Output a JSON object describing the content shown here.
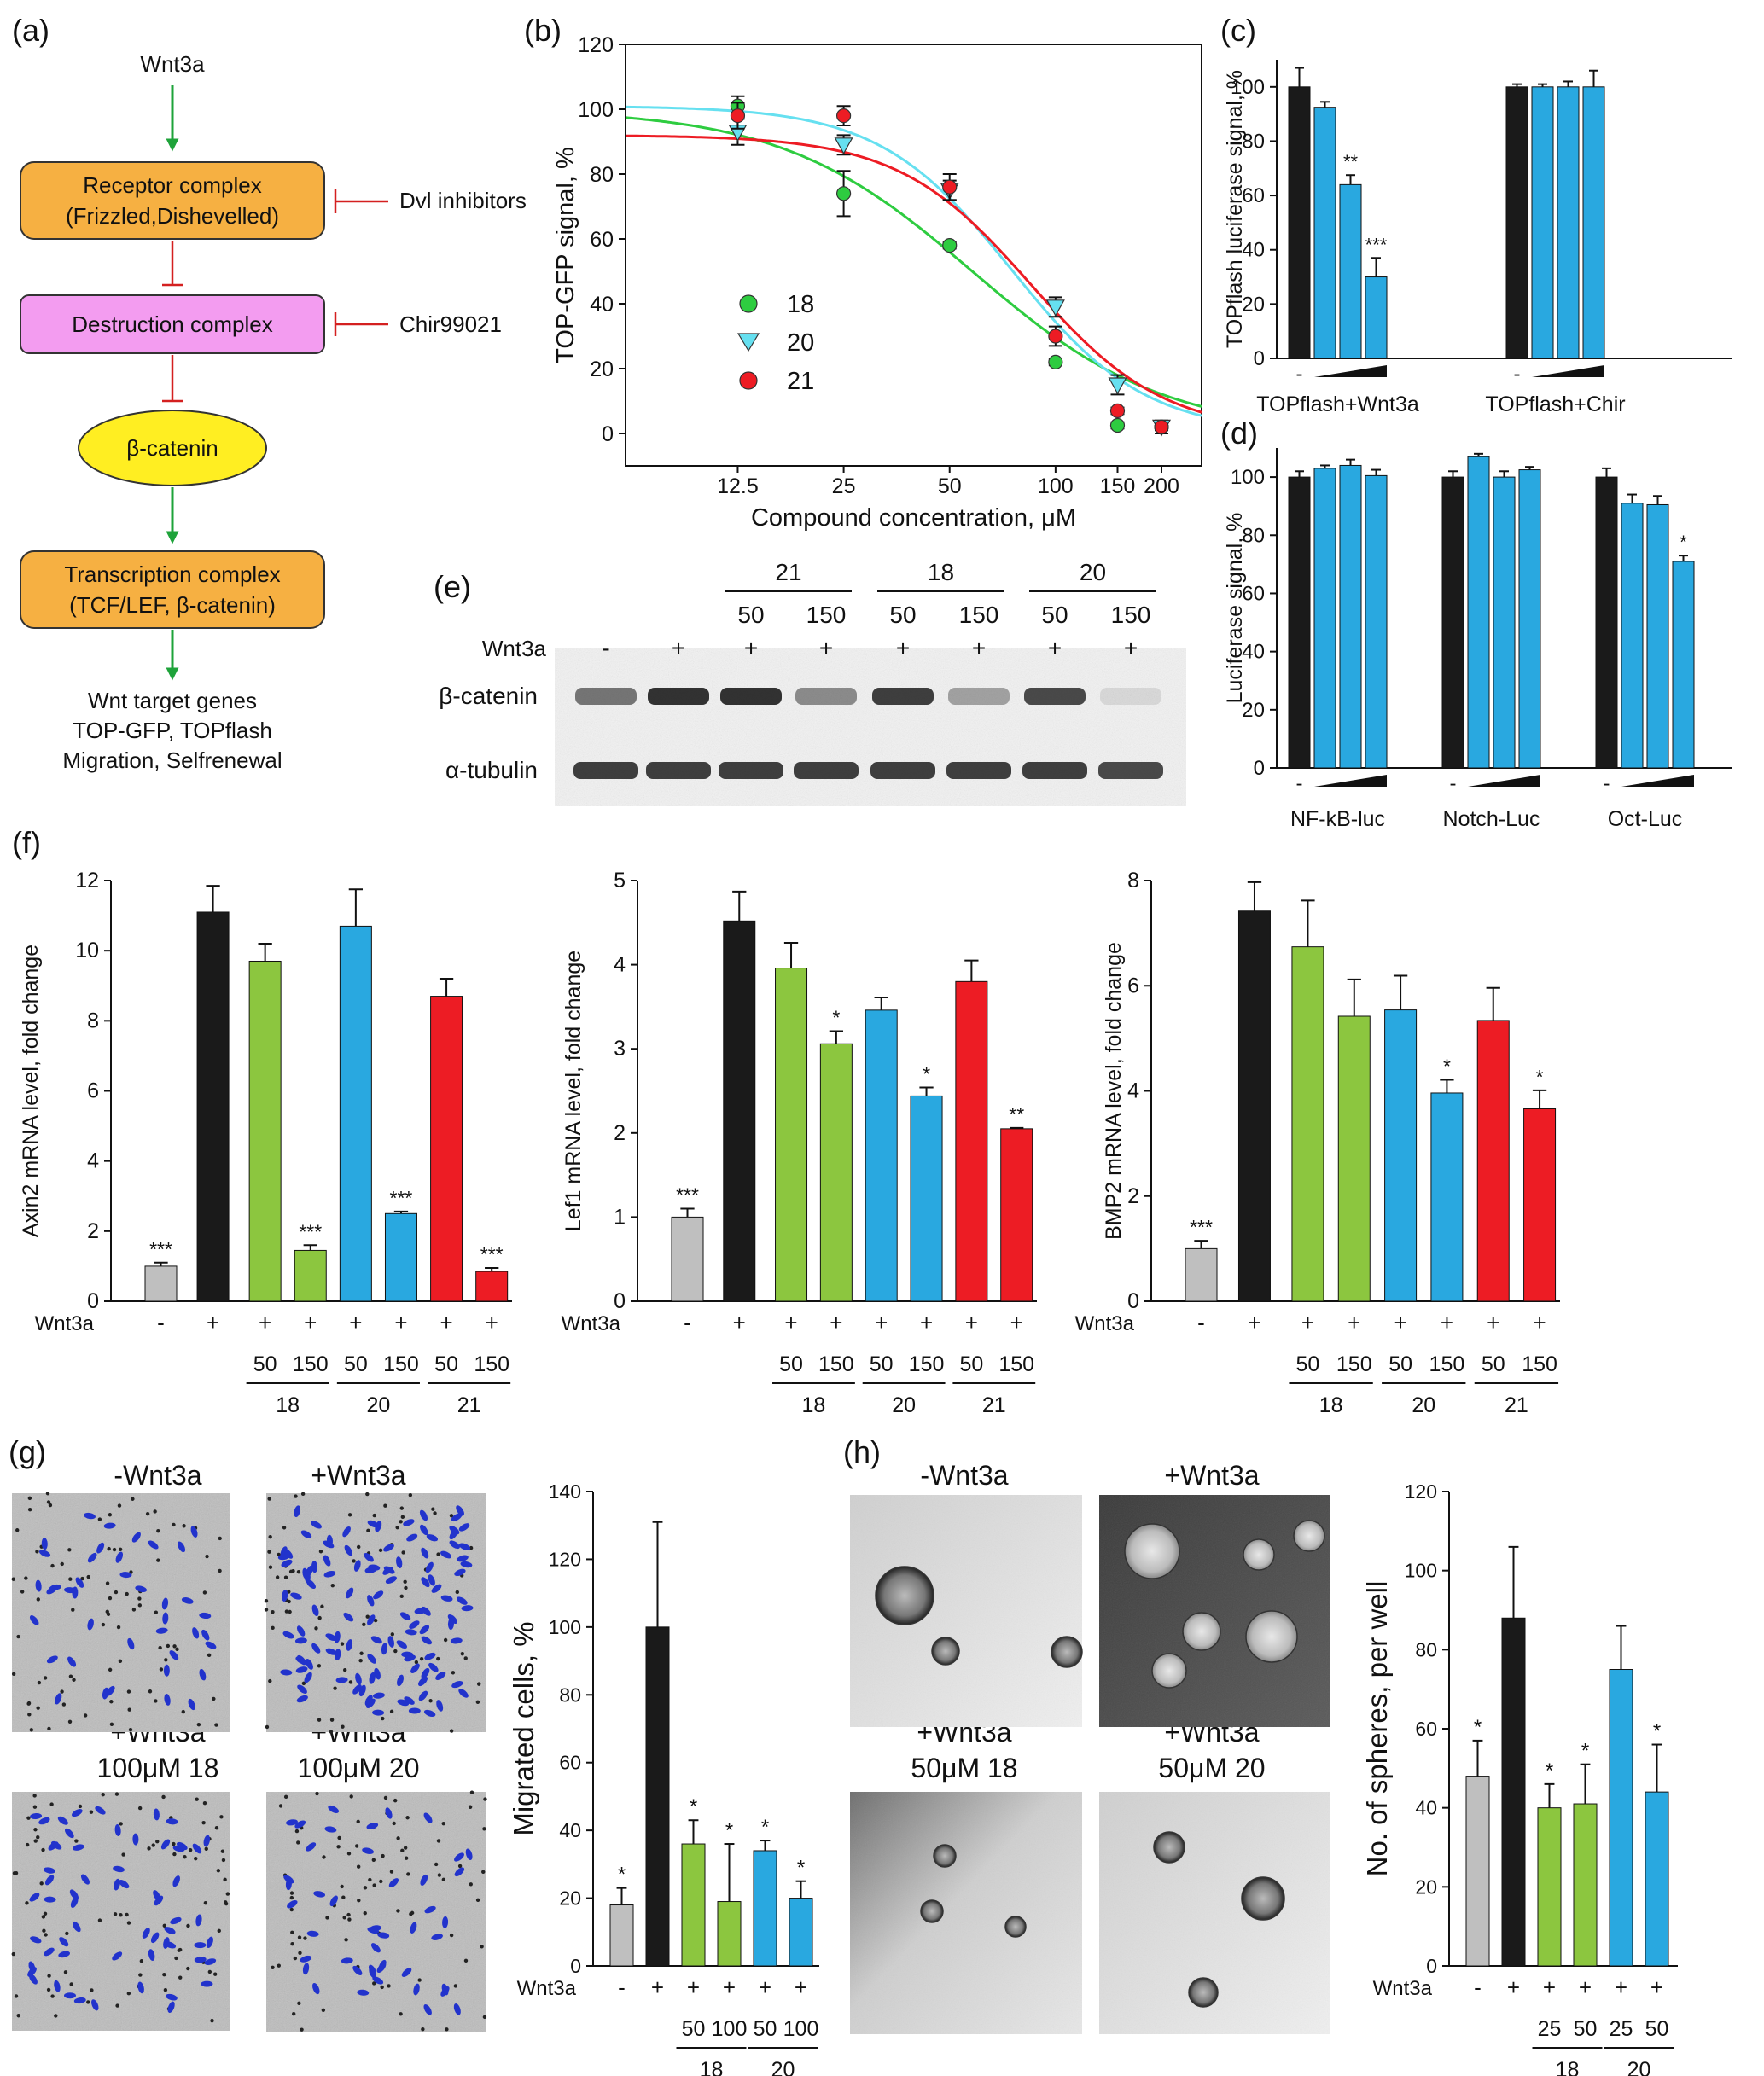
{
  "panels": {
    "a": {
      "label": "(a)",
      "top": "Wnt3a",
      "receptor_line1": "Receptor complex",
      "receptor_line2": "(Frizzled,Dishevelled)",
      "dvl": "Dvl inhibitors",
      "destruction": "Destruction complex",
      "chir": "Chir99021",
      "bcat": "β-catenin",
      "transcription_line1": "Transcription complex",
      "transcription_line2": "(TCF/LEF, β-catenin)",
      "targets_line1": "Wnt target genes",
      "targets_line2": "TOP-GFP, TOPflash",
      "targets_line3": "Migration, Selfrenewal"
    },
    "b_label": "(b)",
    "c_label": "(c)",
    "d_label": "(d)",
    "e": {
      "label": "(e)",
      "wnt_label": "Wnt3a",
      "wnt_signs": [
        "-",
        "+",
        "+",
        "+",
        "+",
        "+",
        "+",
        "+"
      ],
      "groups": [
        "21",
        "18",
        "20"
      ],
      "doses": [
        "50",
        "150",
        "50",
        "150",
        "50",
        "150"
      ],
      "row1": "β-catenin",
      "row2": "α-tubulin",
      "band_intensity_bcat": [
        0.55,
        0.85,
        0.85,
        0.45,
        0.8,
        0.35,
        0.75,
        0.1
      ],
      "band_intensity_tub": [
        0.8,
        0.8,
        0.8,
        0.8,
        0.8,
        0.8,
        0.8,
        0.75
      ]
    },
    "f_label": "(f)",
    "g": {
      "label": "(g)",
      "img1": "-Wnt3a",
      "img2": "+Wnt3a",
      "img3_line1": "+Wnt3a",
      "img3_line2": "100μM 18",
      "img4_line1": "+Wnt3a",
      "img4_line2": "100μM 20"
    },
    "h": {
      "label": "(h)",
      "img1": "-Wnt3a",
      "img2": "+Wnt3a",
      "img3_line1": "+Wnt3a",
      "img3_line2": "50μM 18",
      "img4_line1": "+Wnt3a",
      "img4_line2": "50μM 20"
    }
  },
  "colors": {
    "black": "#1a1a1a",
    "gray": "#bfbfbf",
    "green": "#8cc63f",
    "blue": "#29a8e0",
    "red": "#ed1c24",
    "green_dark": "#2ecc40",
    "cyan": "#66e0f0",
    "arrow_green": "#1ea33a",
    "inhib_red": "#d42020",
    "orange": "#f6b042",
    "pink": "#f39cf0",
    "yellow": "#ffee22"
  },
  "chart_data": [
    {
      "id": "b",
      "type": "scatter",
      "ylabel": "TOP-GFP signal, %",
      "xlabel": "Compound concentration, μM",
      "xscale": "log",
      "xlim": [
        6,
        260
      ],
      "ylim": [
        -10,
        120
      ],
      "xticks": [
        12.5,
        25,
        50,
        100,
        150,
        200
      ],
      "xtick_labels": [
        "12.5",
        "25",
        "50",
        "100",
        "150",
        "200"
      ],
      "yticks": [
        0,
        20,
        40,
        60,
        80,
        100,
        120
      ],
      "legend_position": "center-left",
      "series": [
        {
          "name": "18",
          "marker": "circle",
          "color": "#2ecc40",
          "x": [
            12.5,
            25,
            50,
            100,
            150,
            200
          ],
          "y": [
            101,
            74,
            58,
            22,
            2.5,
            2
          ],
          "err": [
            3,
            7,
            1,
            1,
            1,
            1
          ],
          "fit": {
            "top": 100,
            "bottom": 0,
            "ic50": 58,
            "hill": 1.6
          }
        },
        {
          "name": "20",
          "marker": "triangle-down",
          "color": "#66e0f0",
          "x": [
            12.5,
            25,
            50,
            100,
            150,
            200
          ],
          "y": [
            93,
            89,
            75,
            39,
            15,
            2
          ],
          "err": [
            4,
            3,
            3,
            3,
            3,
            2
          ],
          "fit": {
            "top": 101,
            "bottom": 0,
            "ic50": 75,
            "hill": 2.3
          }
        },
        {
          "name": "21",
          "marker": "circle",
          "color": "#ed1c24",
          "x": [
            12.5,
            25,
            50,
            100,
            150,
            200
          ],
          "y": [
            98,
            98,
            76,
            30,
            7,
            2
          ],
          "err": [
            4,
            3,
            4,
            3,
            1,
            1
          ],
          "fit": {
            "top": 92,
            "bottom": 0,
            "ic50": 85,
            "hill": 2.3
          }
        }
      ]
    },
    {
      "id": "c",
      "type": "bar",
      "ylabel": "TOPflash luciferase signal, %",
      "ylim": [
        0,
        110
      ],
      "yticks": [
        0,
        20,
        40,
        60,
        80,
        100
      ],
      "groups": [
        "TOPflash+Wnt3a",
        "TOPflash+Chir"
      ],
      "values": [
        [
          100,
          92.5,
          64,
          30
        ],
        [
          100,
          100,
          100,
          100
        ]
      ],
      "errors": [
        [
          7,
          2,
          3.5,
          7
        ],
        [
          1,
          1,
          2,
          6
        ]
      ],
      "colors": [
        [
          "#1a1a1a",
          "#29a8e0",
          "#29a8e0",
          "#29a8e0"
        ],
        [
          "#1a1a1a",
          "#29a8e0",
          "#29a8e0",
          "#29a8e0"
        ]
      ],
      "stars": [
        [
          "",
          "",
          "**",
          "***"
        ],
        [
          "",
          "",
          "",
          ""
        ]
      ],
      "minus": "-"
    },
    {
      "id": "d",
      "type": "bar",
      "ylabel": "Luciferase signal, %",
      "ylim": [
        0,
        110
      ],
      "yticks": [
        0,
        20,
        40,
        60,
        80,
        100
      ],
      "groups": [
        "NF-kB-luc",
        "Notch-Luc",
        "Oct-Luc"
      ],
      "values": [
        [
          100,
          103,
          104,
          100.5
        ],
        [
          100,
          107,
          100,
          102.5
        ],
        [
          100,
          91,
          90.5,
          71
        ]
      ],
      "errors": [
        [
          2,
          1,
          2,
          2
        ],
        [
          2,
          1,
          2,
          1
        ],
        [
          3,
          3,
          3,
          2
        ]
      ],
      "colors": [
        [
          "#1a1a1a",
          "#29a8e0",
          "#29a8e0",
          "#29a8e0"
        ],
        [
          "#1a1a1a",
          "#29a8e0",
          "#29a8e0",
          "#29a8e0"
        ],
        [
          "#1a1a1a",
          "#29a8e0",
          "#29a8e0",
          "#29a8e0"
        ]
      ],
      "stars": [
        [
          "",
          "",
          "",
          ""
        ],
        [
          "",
          "",
          "",
          ""
        ],
        [
          "",
          "",
          "",
          "*"
        ]
      ],
      "minus": "-"
    },
    {
      "id": "f1",
      "type": "bar",
      "ylabel": "Axin2 mRNA level, fold change",
      "ylim": [
        0,
        12
      ],
      "yticks": [
        0,
        2,
        4,
        6,
        8,
        10,
        12
      ],
      "values": [
        1,
        11.1,
        9.7,
        1.45,
        10.7,
        2.5,
        8.7,
        0.85
      ],
      "errors": [
        0.1,
        0.75,
        0.5,
        0.15,
        1.05,
        0.06,
        0.5,
        0.1
      ],
      "colors": [
        "#bfbfbf",
        "#1a1a1a",
        "#8cc63f",
        "#8cc63f",
        "#29a8e0",
        "#29a8e0",
        "#ed1c24",
        "#ed1c24"
      ],
      "stars": [
        "***",
        "",
        "",
        "***",
        "",
        "***",
        "",
        "***"
      ],
      "wnt_label": "Wnt3a",
      "wnt_signs": [
        "-",
        "+",
        "+",
        "+",
        "+",
        "+",
        "+",
        "+"
      ],
      "doses": [
        "",
        "",
        "50",
        "150",
        "50",
        "150",
        "50",
        "150"
      ],
      "group_labels": [
        "18",
        "20",
        "21"
      ]
    },
    {
      "id": "f2",
      "type": "bar",
      "ylabel": "Lef1 mRNA level, fold change",
      "ylim": [
        0,
        5
      ],
      "yticks": [
        0,
        1,
        2,
        3,
        4,
        5
      ],
      "values": [
        1,
        4.52,
        3.96,
        3.06,
        3.46,
        2.44,
        3.8,
        2.05
      ],
      "errors": [
        0.1,
        0.35,
        0.3,
        0.15,
        0.15,
        0.1,
        0.25,
        0.01
      ],
      "colors": [
        "#bfbfbf",
        "#1a1a1a",
        "#8cc63f",
        "#8cc63f",
        "#29a8e0",
        "#29a8e0",
        "#ed1c24",
        "#ed1c24"
      ],
      "stars": [
        "***",
        "",
        "",
        "*",
        "",
        "*",
        "",
        "**"
      ],
      "wnt_label": "Wnt3a",
      "wnt_signs": [
        "-",
        "+",
        "+",
        "+",
        "+",
        "+",
        "+",
        "+"
      ],
      "doses": [
        "",
        "",
        "50",
        "150",
        "50",
        "150",
        "50",
        "150"
      ],
      "group_labels": [
        "18",
        "20",
        "21"
      ]
    },
    {
      "id": "f3",
      "type": "bar",
      "ylabel": "BMP2 mRNA level, fold change",
      "ylim": [
        0,
        8
      ],
      "yticks": [
        0,
        2,
        4,
        6,
        8
      ],
      "values": [
        1,
        7.42,
        6.74,
        5.42,
        5.54,
        3.96,
        5.34,
        3.66
      ],
      "errors": [
        0.15,
        0.55,
        0.88,
        0.7,
        0.65,
        0.25,
        0.62,
        0.35
      ],
      "colors": [
        "#bfbfbf",
        "#1a1a1a",
        "#8cc63f",
        "#8cc63f",
        "#29a8e0",
        "#29a8e0",
        "#ed1c24",
        "#ed1c24"
      ],
      "stars": [
        "***",
        "",
        "",
        "",
        "",
        "*",
        "",
        "*"
      ],
      "wnt_label": "Wnt3a",
      "wnt_signs": [
        "-",
        "+",
        "+",
        "+",
        "+",
        "+",
        "+",
        "+"
      ],
      "doses": [
        "",
        "",
        "50",
        "150",
        "50",
        "150",
        "50",
        "150"
      ],
      "group_labels": [
        "18",
        "20",
        "21"
      ]
    },
    {
      "id": "g",
      "type": "bar",
      "ylabel": "Migrated cells, %",
      "ylim": [
        0,
        140
      ],
      "yticks": [
        0,
        20,
        40,
        60,
        80,
        100,
        120,
        140
      ],
      "values": [
        18,
        100,
        36,
        19,
        34,
        20
      ],
      "errors": [
        5,
        31,
        7,
        17,
        3,
        5
      ],
      "colors": [
        "#bfbfbf",
        "#1a1a1a",
        "#8cc63f",
        "#8cc63f",
        "#29a8e0",
        "#29a8e0"
      ],
      "stars": [
        "*",
        "",
        "*",
        "*",
        "*",
        "*"
      ],
      "wnt_label": "Wnt3a",
      "wnt_signs": [
        "-",
        "+",
        "+",
        "+",
        "+",
        "+"
      ],
      "doses": [
        "",
        "",
        "50",
        "100",
        "50",
        "100"
      ],
      "group_labels": [
        "18",
        "20"
      ]
    },
    {
      "id": "h",
      "type": "bar",
      "ylabel": "No. of spheres, per well",
      "ylim": [
        0,
        120
      ],
      "yticks": [
        0,
        20,
        40,
        60,
        80,
        100,
        120
      ],
      "values": [
        48,
        88,
        40,
        41,
        75,
        44
      ],
      "errors": [
        9,
        18,
        6,
        10,
        11,
        12
      ],
      "colors": [
        "#bfbfbf",
        "#1a1a1a",
        "#8cc63f",
        "#8cc63f",
        "#29a8e0",
        "#29a8e0"
      ],
      "stars": [
        "*",
        "",
        "*",
        "*",
        "",
        "*"
      ],
      "wnt_label": "Wnt3a",
      "wnt_signs": [
        "-",
        "+",
        "+",
        "+",
        "+",
        "+"
      ],
      "doses": [
        "",
        "",
        "25",
        "50",
        "25",
        "50"
      ],
      "group_labels": [
        "18",
        "20"
      ]
    }
  ]
}
